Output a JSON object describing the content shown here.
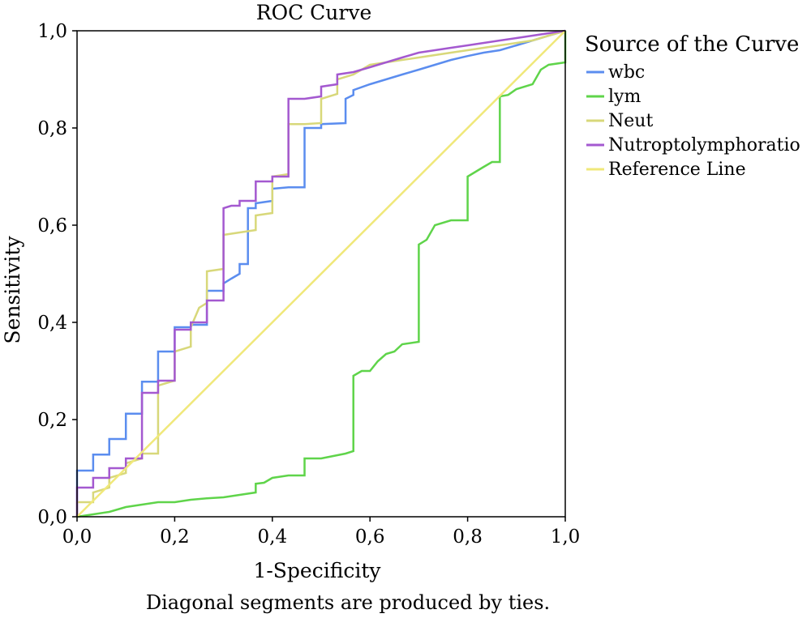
{
  "chart_data": {
    "type": "line",
    "title": "ROC Curve",
    "xlabel": "1-Specificity",
    "ylabel": "Sensitivity",
    "footnote": "Diagonal segments are produced by ties.",
    "xlim": [
      0,
      1
    ],
    "ylim": [
      0,
      1
    ],
    "x_ticks": [
      "0,0",
      "0,2",
      "0,4",
      "0,6",
      "0,8",
      "1,0"
    ],
    "y_ticks": [
      "0,0",
      "0,2",
      "0,4",
      "0,6",
      "0,8",
      "1,0"
    ],
    "grid": false,
    "legend": {
      "title": "Source of the Curve",
      "position": "right"
    },
    "series": [
      {
        "name": "wbc",
        "color": "#5b8def",
        "points": [
          [
            0,
            0
          ],
          [
            0,
            0.095
          ],
          [
            0.033,
            0.095
          ],
          [
            0.033,
            0.128
          ],
          [
            0.066,
            0.128
          ],
          [
            0.066,
            0.16
          ],
          [
            0.1,
            0.16
          ],
          [
            0.1,
            0.212
          ],
          [
            0.133,
            0.212
          ],
          [
            0.133,
            0.278
          ],
          [
            0.166,
            0.278
          ],
          [
            0.166,
            0.34
          ],
          [
            0.2,
            0.34
          ],
          [
            0.2,
            0.39
          ],
          [
            0.233,
            0.39
          ],
          [
            0.233,
            0.395
          ],
          [
            0.266,
            0.395
          ],
          [
            0.266,
            0.465
          ],
          [
            0.3,
            0.465
          ],
          [
            0.3,
            0.48
          ],
          [
            0.316,
            0.49
          ],
          [
            0.333,
            0.5
          ],
          [
            0.333,
            0.52
          ],
          [
            0.35,
            0.52
          ],
          [
            0.35,
            0.635
          ],
          [
            0.366,
            0.635
          ],
          [
            0.366,
            0.645
          ],
          [
            0.4,
            0.65
          ],
          [
            0.4,
            0.675
          ],
          [
            0.433,
            0.678
          ],
          [
            0.466,
            0.678
          ],
          [
            0.466,
            0.8
          ],
          [
            0.5,
            0.8
          ],
          [
            0.5,
            0.808
          ],
          [
            0.55,
            0.81
          ],
          [
            0.55,
            0.86
          ],
          [
            0.566,
            0.868
          ],
          [
            0.566,
            0.878
          ],
          [
            0.6,
            0.89
          ],
          [
            0.633,
            0.9
          ],
          [
            0.666,
            0.91
          ],
          [
            0.7,
            0.92
          ],
          [
            0.733,
            0.93
          ],
          [
            0.766,
            0.94
          ],
          [
            0.8,
            0.948
          ],
          [
            0.833,
            0.955
          ],
          [
            0.866,
            0.96
          ],
          [
            0.9,
            0.97
          ],
          [
            0.933,
            0.98
          ],
          [
            0.966,
            0.99
          ],
          [
            1,
            1
          ]
        ]
      },
      {
        "name": "lym",
        "color": "#5fd44a",
        "points": [
          [
            0,
            0
          ],
          [
            0.033,
            0.005
          ],
          [
            0.066,
            0.01
          ],
          [
            0.1,
            0.02
          ],
          [
            0.133,
            0.025
          ],
          [
            0.166,
            0.03
          ],
          [
            0.2,
            0.03
          ],
          [
            0.233,
            0.035
          ],
          [
            0.266,
            0.038
          ],
          [
            0.3,
            0.04
          ],
          [
            0.333,
            0.045
          ],
          [
            0.366,
            0.05
          ],
          [
            0.366,
            0.068
          ],
          [
            0.383,
            0.07
          ],
          [
            0.4,
            0.08
          ],
          [
            0.433,
            0.085
          ],
          [
            0.466,
            0.085
          ],
          [
            0.466,
            0.12
          ],
          [
            0.5,
            0.12
          ],
          [
            0.55,
            0.13
          ],
          [
            0.566,
            0.135
          ],
          [
            0.566,
            0.29
          ],
          [
            0.583,
            0.3
          ],
          [
            0.6,
            0.3
          ],
          [
            0.616,
            0.32
          ],
          [
            0.633,
            0.335
          ],
          [
            0.65,
            0.34
          ],
          [
            0.666,
            0.355
          ],
          [
            0.7,
            0.36
          ],
          [
            0.7,
            0.56
          ],
          [
            0.716,
            0.57
          ],
          [
            0.733,
            0.6
          ],
          [
            0.766,
            0.61
          ],
          [
            0.8,
            0.61
          ],
          [
            0.8,
            0.7
          ],
          [
            0.833,
            0.72
          ],
          [
            0.85,
            0.73
          ],
          [
            0.866,
            0.73
          ],
          [
            0.866,
            0.865
          ],
          [
            0.883,
            0.868
          ],
          [
            0.9,
            0.88
          ],
          [
            0.933,
            0.89
          ],
          [
            0.95,
            0.92
          ],
          [
            0.966,
            0.93
          ],
          [
            1,
            0.935
          ],
          [
            1,
            1
          ]
        ]
      },
      {
        "name": "Neut",
        "color": "#d8d87a",
        "points": [
          [
            0,
            0
          ],
          [
            0,
            0.03
          ],
          [
            0.033,
            0.03
          ],
          [
            0.033,
            0.05
          ],
          [
            0.066,
            0.06
          ],
          [
            0.066,
            0.08
          ],
          [
            0.1,
            0.09
          ],
          [
            0.1,
            0.11
          ],
          [
            0.133,
            0.12
          ],
          [
            0.133,
            0.13
          ],
          [
            0.166,
            0.13
          ],
          [
            0.166,
            0.27
          ],
          [
            0.2,
            0.28
          ],
          [
            0.2,
            0.34
          ],
          [
            0.233,
            0.35
          ],
          [
            0.233,
            0.39
          ],
          [
            0.25,
            0.43
          ],
          [
            0.266,
            0.44
          ],
          [
            0.266,
            0.505
          ],
          [
            0.3,
            0.51
          ],
          [
            0.3,
            0.58
          ],
          [
            0.333,
            0.585
          ],
          [
            0.366,
            0.59
          ],
          [
            0.366,
            0.62
          ],
          [
            0.4,
            0.625
          ],
          [
            0.4,
            0.7
          ],
          [
            0.433,
            0.705
          ],
          [
            0.433,
            0.808
          ],
          [
            0.466,
            0.808
          ],
          [
            0.5,
            0.81
          ],
          [
            0.5,
            0.86
          ],
          [
            0.533,
            0.87
          ],
          [
            0.533,
            0.9
          ],
          [
            0.566,
            0.91
          ],
          [
            0.6,
            0.93
          ],
          [
            0.633,
            0.935
          ],
          [
            0.666,
            0.94
          ],
          [
            0.7,
            0.945
          ],
          [
            0.733,
            0.95
          ],
          [
            0.766,
            0.955
          ],
          [
            0.8,
            0.96
          ],
          [
            0.833,
            0.965
          ],
          [
            0.866,
            0.97
          ],
          [
            0.9,
            0.975
          ],
          [
            0.933,
            0.98
          ],
          [
            0.966,
            0.99
          ],
          [
            1,
            1
          ]
        ]
      },
      {
        "name": "Nutroptolymphoratio",
        "color": "#a459d0",
        "points": [
          [
            0,
            0
          ],
          [
            0,
            0.06
          ],
          [
            0.033,
            0.06
          ],
          [
            0.033,
            0.08
          ],
          [
            0.066,
            0.08
          ],
          [
            0.066,
            0.1
          ],
          [
            0.1,
            0.1
          ],
          [
            0.1,
            0.12
          ],
          [
            0.133,
            0.12
          ],
          [
            0.133,
            0.255
          ],
          [
            0.166,
            0.255
          ],
          [
            0.166,
            0.28
          ],
          [
            0.2,
            0.28
          ],
          [
            0.2,
            0.385
          ],
          [
            0.233,
            0.385
          ],
          [
            0.233,
            0.4
          ],
          [
            0.266,
            0.4
          ],
          [
            0.266,
            0.445
          ],
          [
            0.3,
            0.445
          ],
          [
            0.3,
            0.635
          ],
          [
            0.316,
            0.64
          ],
          [
            0.333,
            0.64
          ],
          [
            0.333,
            0.65
          ],
          [
            0.366,
            0.65
          ],
          [
            0.366,
            0.69
          ],
          [
            0.4,
            0.69
          ],
          [
            0.4,
            0.7
          ],
          [
            0.433,
            0.7
          ],
          [
            0.433,
            0.86
          ],
          [
            0.466,
            0.86
          ],
          [
            0.5,
            0.865
          ],
          [
            0.5,
            0.885
          ],
          [
            0.533,
            0.89
          ],
          [
            0.533,
            0.91
          ],
          [
            0.566,
            0.915
          ],
          [
            0.6,
            0.925
          ],
          [
            0.633,
            0.935
          ],
          [
            0.666,
            0.945
          ],
          [
            0.7,
            0.955
          ],
          [
            0.733,
            0.96
          ],
          [
            0.766,
            0.965
          ],
          [
            0.8,
            0.97
          ],
          [
            0.833,
            0.975
          ],
          [
            0.866,
            0.98
          ],
          [
            0.9,
            0.985
          ],
          [
            0.933,
            0.99
          ],
          [
            0.966,
            0.995
          ],
          [
            1,
            1
          ]
        ]
      },
      {
        "name": "Reference Line",
        "color": "#f0e87a",
        "points": [
          [
            0,
            0
          ],
          [
            1,
            1
          ]
        ]
      }
    ]
  }
}
